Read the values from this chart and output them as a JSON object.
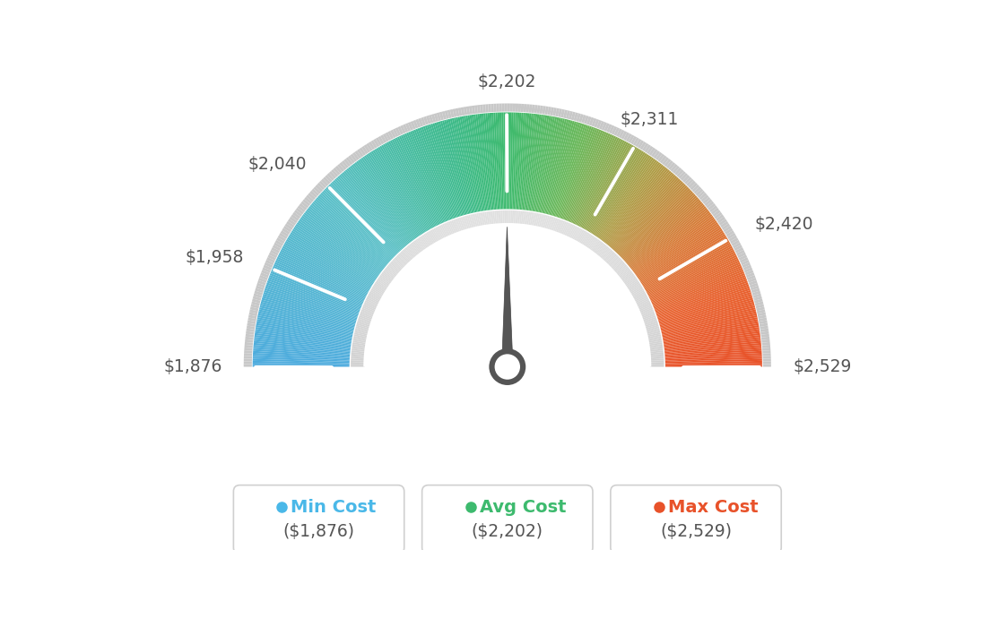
{
  "min_val": 1876,
  "max_val": 2529,
  "avg_val": 2202,
  "tick_labels": [
    "$1,876",
    "$1,958",
    "$2,040",
    "$2,202",
    "$2,311",
    "$2,420",
    "$2,529"
  ],
  "tick_values": [
    1876,
    1958,
    2040,
    2202,
    2311,
    2420,
    2529
  ],
  "legend_items": [
    {
      "label": "Min Cost",
      "value": "($1,876)",
      "color": "#4ab8e8"
    },
    {
      "label": "Avg Cost",
      "value": "($2,202)",
      "color": "#3dba6e"
    },
    {
      "label": "Max Cost",
      "value": "($2,529)",
      "color": "#e8522a"
    }
  ],
  "needle_value": 2202,
  "background_color": "#ffffff",
  "color_stops": [
    [
      0.0,
      [
        0.3,
        0.67,
        0.87
      ]
    ],
    [
      0.25,
      [
        0.35,
        0.75,
        0.78
      ]
    ],
    [
      0.42,
      [
        0.24,
        0.73,
        0.55
      ]
    ],
    [
      0.5,
      [
        0.24,
        0.73,
        0.43
      ]
    ],
    [
      0.6,
      [
        0.42,
        0.72,
        0.35
      ]
    ],
    [
      0.7,
      [
        0.68,
        0.62,
        0.28
      ]
    ],
    [
      0.8,
      [
        0.85,
        0.48,
        0.22
      ]
    ],
    [
      0.9,
      [
        0.91,
        0.38,
        0.18
      ]
    ],
    [
      1.0,
      [
        0.91,
        0.32,
        0.16
      ]
    ]
  ]
}
